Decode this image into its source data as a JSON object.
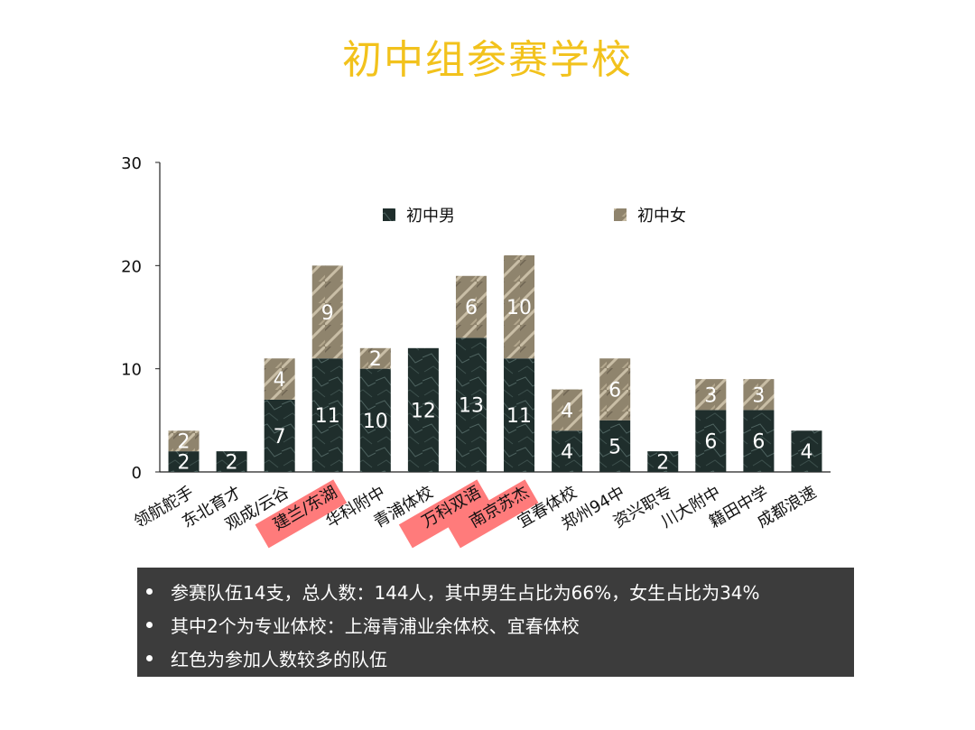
{
  "slide": {
    "title": "初中组参赛学校"
  },
  "chart_data": {
    "type": "bar",
    "stacked": true,
    "categories": [
      "领航舵手",
      "东北育才",
      "观成/云谷",
      "建兰/东湖",
      "华科附中",
      "青浦体校",
      "万科双语",
      "南京苏杰",
      "宜春体校",
      "郑州94中",
      "资兴职专",
      "川大附中",
      "籍田中学",
      "成都浪速"
    ],
    "highlighted_categories": [
      "建兰/东湖",
      "万科双语",
      "南京苏杰"
    ],
    "highlight_color": "#ff7b7b",
    "series": [
      {
        "name": "初中男",
        "values": [
          2,
          2,
          7,
          11,
          10,
          12,
          13,
          11,
          4,
          5,
          2,
          6,
          6,
          4
        ],
        "color": "#1f2e2c"
      },
      {
        "name": "初中女",
        "values": [
          2,
          0,
          4,
          9,
          2,
          0,
          6,
          10,
          4,
          6,
          0,
          3,
          3,
          0
        ],
        "color": "#8b7f6a"
      }
    ],
    "ylim": [
      0,
      30
    ],
    "yticks": [
      0,
      10,
      20,
      30
    ],
    "legend_position": "top",
    "grid": false
  },
  "notes": [
    "参赛队伍14支，总人数：144人，其中男生占比为66%，女生占比为34%",
    "其中2个为专业体校：上海青浦业余体校、宜春体校",
    "红色为参加人数较多的队伍"
  ]
}
